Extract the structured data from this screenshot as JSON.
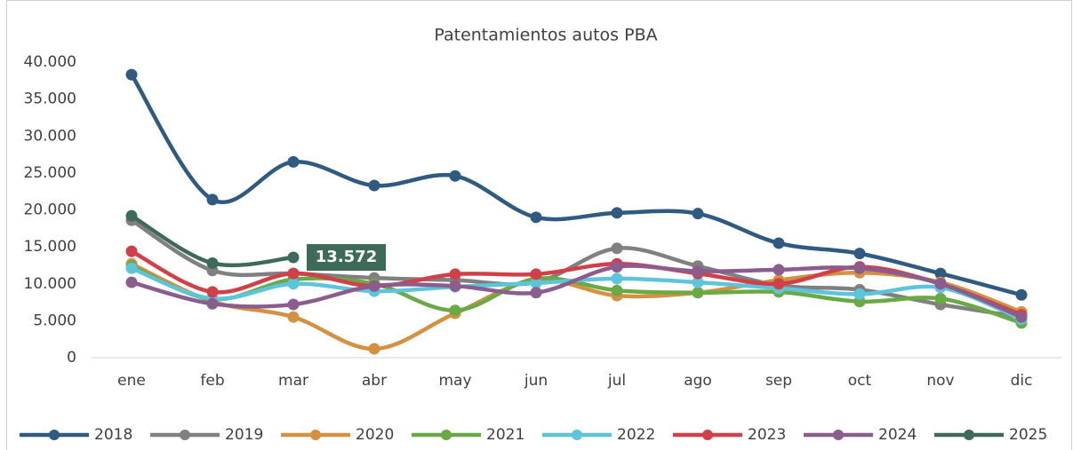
{
  "chart_data": {
    "type": "line",
    "title": "Patentamientos autos PBA",
    "categories": [
      "ene",
      "feb",
      "mar",
      "abr",
      "may",
      "jun",
      "jul",
      "ago",
      "sep",
      "oct",
      "nov",
      "dic"
    ],
    "ylim": [
      0,
      40000
    ],
    "yticks": [
      0,
      {
        "value": 5000,
        "label": "5.000"
      },
      {
        "value": 10000,
        "label": "10.000"
      },
      {
        "value": 15000,
        "label": "15.000"
      },
      {
        "value": 20000,
        "label": "20.000"
      },
      {
        "value": 25000,
        "label": "25.000"
      },
      {
        "value": 30000,
        "label": "30.000"
      },
      {
        "value": 35000,
        "label": "35.000"
      },
      {
        "value": 40000,
        "label": "40.000"
      }
    ],
    "grid": false,
    "legend": "bottom",
    "series": [
      {
        "name": "2018",
        "color": "#2f5a81",
        "values": [
          38300,
          21400,
          26500,
          23300,
          24600,
          19000,
          19600,
          19500,
          15500,
          14100,
          11400,
          8500
        ]
      },
      {
        "name": "2019",
        "color": "#808080",
        "values": [
          18600,
          11800,
          11400,
          10800,
          10500,
          10200,
          14800,
          12400,
          9800,
          9200,
          7200,
          5500
        ]
      },
      {
        "name": "2020",
        "color": "#d4913f",
        "values": [
          12700,
          7600,
          5500,
          1200,
          6000,
          10500,
          8400,
          8800,
          10500,
          11500,
          10200,
          6200
        ]
      },
      {
        "name": "2021",
        "color": "#6aaa45",
        "values": [
          12400,
          7900,
          10600,
          10000,
          6400,
          10700,
          9100,
          8800,
          8900,
          7600,
          8000,
          4700
        ]
      },
      {
        "name": "2022",
        "color": "#5cc5db",
        "values": [
          12100,
          8000,
          10000,
          9000,
          9600,
          10100,
          10700,
          10200,
          9400,
          8600,
          9500,
          5200
        ]
      },
      {
        "name": "2023",
        "color": "#d13f48",
        "values": [
          14400,
          8900,
          11400,
          9700,
          11300,
          11300,
          12700,
          11400,
          10000,
          12300,
          10000,
          5800
        ]
      },
      {
        "name": "2024",
        "color": "#8a5d8e",
        "values": [
          10200,
          7300,
          7200,
          9700,
          9700,
          8800,
          12300,
          11700,
          11900,
          12100,
          10000,
          5500
        ]
      },
      {
        "name": "2025",
        "color": "#3e6b59",
        "values": [
          19200,
          12800,
          13572,
          null,
          null,
          null,
          null,
          null,
          null,
          null,
          null,
          null
        ],
        "value_labels": [
          null,
          null,
          "13.572",
          null,
          null,
          null,
          null,
          null,
          null,
          null,
          null,
          null
        ]
      }
    ]
  }
}
